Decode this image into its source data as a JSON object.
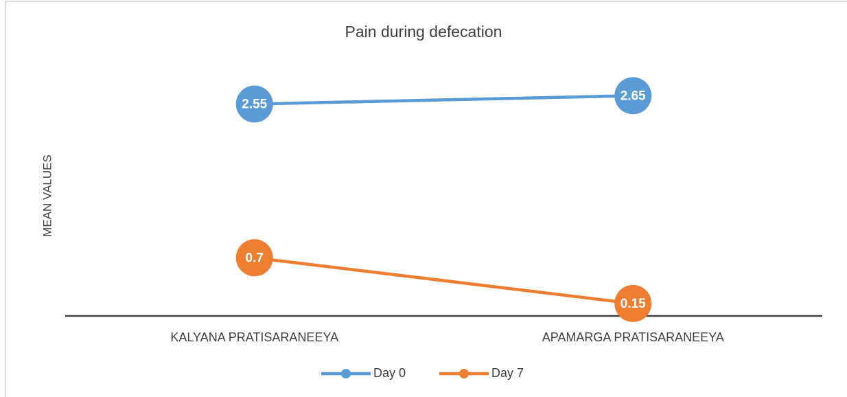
{
  "chart_data": {
    "type": "line",
    "title": "Pain during defecation",
    "y_label": "MEAN VALUES",
    "categories": [
      "KALYANA PRATISARANEEYA",
      "APAMARGA PRATISARANEEYA"
    ],
    "series": [
      {
        "name": "Day 0",
        "color": "#5b9bd5",
        "values": [
          2.55,
          2.65
        ]
      },
      {
        "name": "Day 7",
        "color": "#ed7d31",
        "values": [
          0.7,
          0.15
        ]
      }
    ],
    "ylim": [
      0,
      3
    ],
    "legend": "bottom"
  }
}
